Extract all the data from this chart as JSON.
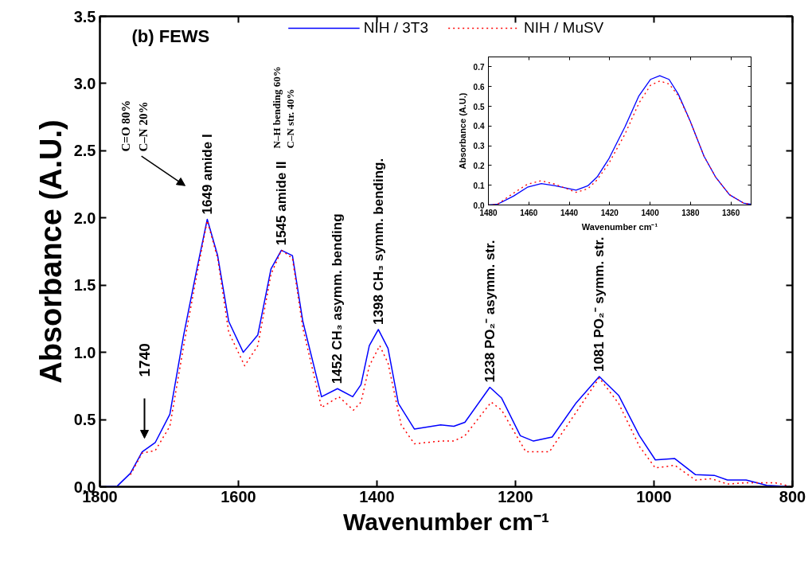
{
  "chart_data": [
    {
      "type": "line",
      "xlabel": "Wavenumber cm⁻¹",
      "ylabel": "Absorbance (A.U.)",
      "xlim": [
        1800,
        800
      ],
      "xticks": [
        1800,
        1600,
        1400,
        1200,
        1000,
        800
      ],
      "ylim": [
        0,
        3.5
      ],
      "yticks": [
        {
          "value": 0,
          "label": "0.0"
        },
        {
          "value": 0.5,
          "label": "0.5"
        },
        {
          "value": 1,
          "label": "1.0"
        },
        {
          "value": 1.5,
          "label": "1.5"
        },
        {
          "value": 2,
          "label": "2.0"
        },
        {
          "value": 2.5,
          "label": "2.5"
        },
        {
          "value": 3,
          "label": "3.0"
        },
        {
          "value": 3.5,
          "label": "3.5"
        }
      ],
      "grid": false,
      "legend": "top",
      "marker": "none",
      "series": [
        {
          "name": "NIH / 3T3",
          "color": "#0000ff",
          "line_style": "solid",
          "x": [
            1800,
            1775,
            1756,
            1739,
            1720,
            1699,
            1679,
            1660,
            1645,
            1630,
            1614,
            1593,
            1572,
            1553,
            1538,
            1522,
            1507,
            1480,
            1457,
            1435,
            1423,
            1411,
            1398,
            1384,
            1369,
            1346,
            1308,
            1289,
            1273,
            1237,
            1220,
            1193,
            1174,
            1147,
            1113,
            1079,
            1051,
            1021,
            998,
            970,
            940,
            913,
            894,
            867,
            837,
            800
          ],
          "values": [
            0,
            0.005,
            0.1,
            0.26,
            0.33,
            0.54,
            1.13,
            1.62,
            1.99,
            1.72,
            1.23,
            1.0,
            1.13,
            1.62,
            1.76,
            1.72,
            1.23,
            0.67,
            0.73,
            0.67,
            0.76,
            1.05,
            1.17,
            1.03,
            0.62,
            0.43,
            0.46,
            0.45,
            0.48,
            0.74,
            0.66,
            0.38,
            0.34,
            0.37,
            0.62,
            0.82,
            0.68,
            0.38,
            0.2,
            0.21,
            0.09,
            0.085,
            0.05,
            0.05,
            0.01,
            0
          ]
        },
        {
          "name": "NIH / MuSV",
          "color": "#ff0000",
          "line_style": "dotted",
          "x": [
            1756,
            1739,
            1720,
            1699,
            1679,
            1660,
            1645,
            1630,
            1614,
            1591,
            1572,
            1553,
            1538,
            1522,
            1507,
            1480,
            1455,
            1434,
            1423,
            1411,
            1396,
            1384,
            1365,
            1346,
            1308,
            1289,
            1273,
            1235,
            1220,
            1185,
            1151,
            1113,
            1079,
            1051,
            1021,
            998,
            970,
            940,
            917,
            894,
            867,
            825,
            800
          ],
          "values": [
            0.09,
            0.25,
            0.27,
            0.45,
            1.05,
            1.58,
            1.98,
            1.7,
            1.15,
            0.9,
            1.05,
            1.58,
            1.76,
            1.7,
            1.18,
            0.59,
            0.67,
            0.57,
            0.63,
            0.9,
            1.05,
            0.92,
            0.46,
            0.32,
            0.34,
            0.34,
            0.38,
            0.63,
            0.57,
            0.26,
            0.26,
            0.55,
            0.81,
            0.62,
            0.3,
            0.14,
            0.16,
            0.05,
            0.06,
            0.02,
            0.03,
            0.03,
            0
          ]
        }
      ],
      "annotations": [
        "(b) FEWS",
        "C=O 80%",
        "C–N 20%",
        "N–H bending 60%",
        "C–N str. 40%",
        {
          "text": "1649 amide I",
          "x": 1645,
          "y": 1.99
        },
        {
          "text": "1545 amide II",
          "x": 1538,
          "y": 1.76
        },
        "1740",
        {
          "text": "1452 CH₃ asymm. bending",
          "x": 1457,
          "y": 0.73
        },
        {
          "text": "1398 CH₃ symm. bending.",
          "x": 1398,
          "y": 1.17
        },
        {
          "text": "1238 PO₂⁻ asymm. str.",
          "x": 1237,
          "y": 0.74
        },
        {
          "text": "1081 PO₂⁻ symm. str.",
          "x": 1079,
          "y": 0.82
        }
      ]
    },
    {
      "type": "line",
      "xlabel": "Wavenumber cm⁻¹",
      "ylabel": "Absorbance (A.U.)",
      "xlim": [
        1480,
        1350
      ],
      "xticks": [
        1480,
        1460,
        1440,
        1420,
        1400,
        1380,
        1360
      ],
      "ylim": [
        0,
        0.75
      ],
      "yticks": [
        {
          "value": 0,
          "label": "0.0"
        },
        {
          "value": 0.1,
          "label": "0.1"
        },
        {
          "value": 0.2,
          "label": "0.2"
        },
        {
          "value": 0.3,
          "label": "0.3"
        },
        {
          "value": 0.4,
          "label": "0.4"
        },
        {
          "value": 0.5,
          "label": "0.5"
        },
        {
          "value": 0.6,
          "label": "0.6"
        },
        {
          "value": 0.7,
          "label": "0.7"
        }
      ],
      "grid": false,
      "marker": "none",
      "series": [
        {
          "color": "#0000ff",
          "line_style": "solid",
          "x": [
            1480,
            1475.6,
            1467.6,
            1460.7,
            1453.8,
            1446.9,
            1436.6,
            1430.8,
            1426.2,
            1420.5,
            1412.4,
            1405.5,
            1399.8,
            1395.2,
            1390.6,
            1386,
            1380.2,
            1373.3,
            1367.6,
            1360.7,
            1353.8,
            1350
          ],
          "values": [
            0,
            0.003,
            0.045,
            0.09,
            0.108,
            0.097,
            0.075,
            0.097,
            0.142,
            0.232,
            0.396,
            0.553,
            0.636,
            0.655,
            0.636,
            0.561,
            0.426,
            0.247,
            0.142,
            0.052,
            0.01,
            0.003
          ]
        },
        {
          "color": "#ff0000",
          "line_style": "dotted",
          "x": [
            1480,
            1475.6,
            1467.6,
            1460.7,
            1453.8,
            1446.9,
            1436.6,
            1430.8,
            1426.2,
            1420.5,
            1412.4,
            1405.5,
            1399.8,
            1395.2,
            1390.6,
            1386,
            1380.2,
            1373.3,
            1367.6,
            1360.7,
            1353.8,
            1350
          ],
          "values": [
            0,
            0.003,
            0.06,
            0.105,
            0.123,
            0.105,
            0.064,
            0.082,
            0.127,
            0.209,
            0.359,
            0.516,
            0.606,
            0.628,
            0.613,
            0.553,
            0.426,
            0.247,
            0.142,
            0.052,
            0.01,
            0.003
          ]
        }
      ]
    }
  ]
}
